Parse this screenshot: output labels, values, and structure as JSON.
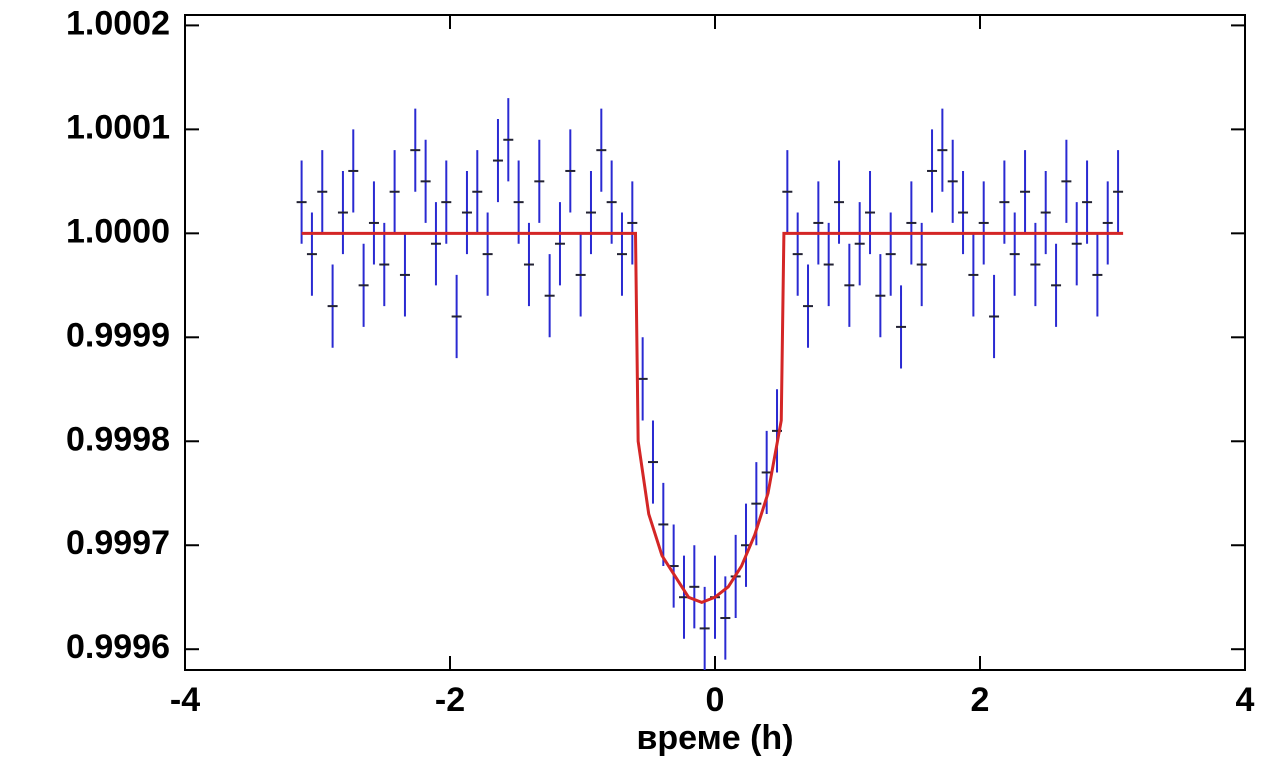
{
  "chart_data": {
    "type": "scatter",
    "xlabel": "време (h)",
    "xlim": [
      -4,
      4
    ],
    "xticks": [
      -4,
      -2,
      0,
      2,
      4
    ],
    "ylim": [
      0.99958,
      1.00021
    ],
    "yticks": [
      1.0002,
      1.0001,
      {
        "value": 1,
        "label": "1.0000"
      },
      0.9999,
      0.9998,
      0.9997,
      0.9996
    ],
    "series": [
      {
        "style": "errorbar",
        "color": "#2a2ad2",
        "yerr": 4e-05,
        "x": [
          -3.12,
          -3.042,
          -2.964,
          -2.886,
          -2.808,
          -2.73,
          -2.652,
          -2.574,
          -2.496,
          -2.418,
          -2.34,
          -2.262,
          -2.184,
          -2.106,
          -2.028,
          -1.95,
          -1.872,
          -1.794,
          -1.716,
          -1.638,
          -1.56,
          -1.482,
          -1.404,
          -1.326,
          -1.248,
          -1.17,
          -1.092,
          -1.014,
          -0.936,
          -0.858,
          -0.78,
          -0.702,
          -0.624,
          -0.546,
          -0.468,
          -0.39,
          -0.312,
          -0.234,
          -0.156,
          -0.078,
          0,
          0.078,
          0.156,
          0.234,
          0.312,
          0.39,
          0.468,
          0.546,
          0.624,
          0.702,
          0.78,
          0.858,
          0.936,
          1.014,
          1.092,
          1.17,
          1.248,
          1.326,
          1.404,
          1.482,
          1.56,
          1.638,
          1.716,
          1.794,
          1.872,
          1.95,
          2.028,
          2.106,
          2.184,
          2.262,
          2.34,
          2.418,
          2.496,
          2.574,
          2.652,
          2.73,
          2.808,
          2.886,
          2.964,
          3.042
        ],
        "values": [
          1.00003,
          0.99998,
          1.00004,
          0.99993,
          1.00002,
          1.00006,
          0.99995,
          1.00001,
          0.99997,
          1.00004,
          0.99996,
          1.00008,
          1.00005,
          0.99999,
          1.00003,
          0.99992,
          1.00002,
          1.00004,
          0.99998,
          1.00007,
          1.00009,
          1.00003,
          0.99997,
          1.00005,
          0.99994,
          0.99999,
          1.00006,
          0.99996,
          1.00002,
          1.00008,
          1.00003,
          0.99998,
          1.00001,
          0.99986,
          0.99978,
          0.99972,
          0.99968,
          0.99965,
          0.99966,
          0.99962,
          0.99965,
          0.99963,
          0.99967,
          0.9997,
          0.99974,
          0.99977,
          0.99981,
          1.00004,
          0.99998,
          0.99993,
          1.00001,
          0.99997,
          1.00003,
          0.99995,
          0.99999,
          1.00002,
          0.99994,
          0.99998,
          0.99991,
          1.00001,
          0.99997,
          1.00006,
          1.00008,
          1.00005,
          1.00002,
          0.99996,
          1.00001,
          0.99992,
          1.00003,
          0.99998,
          1.00004,
          0.99997,
          1.00002,
          0.99995,
          1.00005,
          0.99999,
          1.00003,
          0.99996,
          1.00001,
          1.00004
        ]
      },
      {
        "style": "line",
        "color": "#d42626",
        "x": [
          -3.12,
          -0.6,
          -0.58,
          -0.5,
          -0.4,
          -0.3,
          -0.2,
          -0.1,
          0,
          0.1,
          0.2,
          0.3,
          0.4,
          0.5,
          0.52,
          0.54,
          3.08
        ],
        "values": [
          1,
          1,
          0.9998,
          0.99973,
          0.99969,
          0.99967,
          0.99965,
          0.999645,
          0.99965,
          0.99966,
          0.99968,
          0.99971,
          0.99975,
          0.99982,
          1,
          1,
          1
        ]
      }
    ]
  }
}
